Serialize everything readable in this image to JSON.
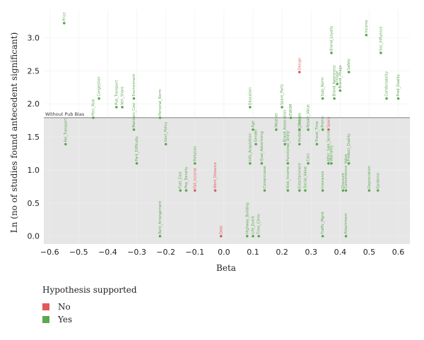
{
  "chart_data": {
    "type": "scatter",
    "xlabel": "Beta",
    "ylabel": "Ln (no of studies found antecedent significant)",
    "xlim": [
      -0.62,
      0.64
    ],
    "ylim": [
      -0.12,
      3.42
    ],
    "x_ticks": [
      "−0.6",
      "−0.5",
      "−0.4",
      "−0.3",
      "−0.2",
      "−0.1",
      "0.0",
      "0.1",
      "0.2",
      "0.3",
      "0.4",
      "0.5",
      "0.6"
    ],
    "x_tick_values": [
      -0.6,
      -0.5,
      -0.4,
      -0.3,
      -0.2,
      -0.1,
      0.0,
      0.1,
      0.2,
      0.3,
      0.4,
      0.5,
      0.6
    ],
    "y_ticks": [
      "0.0",
      "0.5",
      "1.0",
      "1.5",
      "2.0",
      "2.5",
      "3.0"
    ],
    "y_tick_values": [
      0.0,
      0.5,
      1.0,
      1.5,
      2.0,
      2.5,
      3.0
    ],
    "reference_line": {
      "y": 1.79,
      "label": "Without Pub Bias"
    },
    "colors": {
      "No": "#e05a5a",
      "Yes": "#5aa84f",
      "band": "#e6e6e6"
    },
    "legend": {
      "title": "Hypothesis supported",
      "entries": [
        {
          "label": "No",
          "color": "#e05a5a"
        },
        {
          "label": "Yes",
          "color": "#5aa84f"
        }
      ],
      "placement": "bottom-left"
    },
    "points": [
      {
        "label": "Price",
        "x": -0.55,
        "y": 3.22,
        "supported": "Yes"
      },
      {
        "label": "Rel_Transport",
        "x": -0.545,
        "y": 1.39,
        "supported": "Yes"
      },
      {
        "label": "Perc_Risk",
        "x": -0.45,
        "y": 1.79,
        "supported": "Yes"
      },
      {
        "label": "Congestion",
        "x": -0.43,
        "y": 2.08,
        "supported": "Yes"
      },
      {
        "label": "Pub_Transport",
        "x": -0.37,
        "y": 1.95,
        "supported": "Yes"
      },
      {
        "label": "Veh_Share",
        "x": -0.35,
        "y": 1.95,
        "supported": "Yes"
      },
      {
        "label": "Environment",
        "x": -0.31,
        "y": 2.08,
        "supported": "Yes"
      },
      {
        "label": "Maintain_Cost",
        "x": -0.31,
        "y": 1.61,
        "supported": "Yes"
      },
      {
        "label": "Park_Difficulty",
        "x": -0.3,
        "y": 1.1,
        "supported": "Yes"
      },
      {
        "label": "Personal_Norm",
        "x": -0.22,
        "y": 1.79,
        "supported": "Yes"
      },
      {
        "label": "Govt_Policy",
        "x": -0.2,
        "y": 1.39,
        "supported": "Yes"
      },
      {
        "label": "Rent_Arrangement",
        "x": -0.22,
        "y": 0.0,
        "supported": "Yes"
      },
      {
        "label": "Fuel_Cost",
        "x": -0.15,
        "y": 0.69,
        "supported": "Yes"
      },
      {
        "label": "Pop_Density",
        "x": -0.13,
        "y": 0.69,
        "supported": "Yes"
      },
      {
        "label": "Pollution",
        "x": -0.1,
        "y": 1.1,
        "supported": "Yes"
      },
      {
        "label": "Fall_Income",
        "x": -0.1,
        "y": 0.69,
        "supported": "No"
      },
      {
        "label": "Work_Distance",
        "x": -0.03,
        "y": 0.69,
        "supported": "No"
      },
      {
        "label": "Debt",
        "x": -0.01,
        "y": 0.0,
        "supported": "No"
      },
      {
        "label": "Education",
        "x": 0.09,
        "y": 1.95,
        "supported": "Yes"
      },
      {
        "label": "Age",
        "x": 0.1,
        "y": 1.61,
        "supported": "Yes"
      },
      {
        "label": "Gender",
        "x": 0.11,
        "y": 1.39,
        "supported": "Yes"
      },
      {
        "label": "Info_Acquisition",
        "x": 0.09,
        "y": 1.1,
        "supported": "Yes"
      },
      {
        "label": "Qual_Advertising",
        "x": 0.13,
        "y": 1.1,
        "supported": "Yes"
      },
      {
        "label": "Conspicuous",
        "x": 0.14,
        "y": 0.69,
        "supported": "Yes"
      },
      {
        "label": "Highway_Building",
        "x": 0.08,
        "y": 0.0,
        "supported": "Yes"
      },
      {
        "label": "Life_Event",
        "x": 0.1,
        "y": 0.0,
        "supported": "Yes"
      },
      {
        "label": "Time_Clims",
        "x": 0.12,
        "y": 0.0,
        "supported": "Yes"
      },
      {
        "label": "Weather",
        "x": 0.18,
        "y": 1.61,
        "supported": "Yes"
      },
      {
        "label": "Spare_Parts",
        "x": 0.2,
        "y": 1.95,
        "supported": "Yes"
      },
      {
        "label": "Brand_Association",
        "x": 0.21,
        "y": 1.39,
        "supported": "Yes"
      },
      {
        "label": "Functional_Utility",
        "x": 0.22,
        "y": 1.1,
        "supported": "Yes"
      },
      {
        "label": "EWOM",
        "x": 0.23,
        "y": 1.79,
        "supported": "Yes"
      },
      {
        "label": "Risk_Income",
        "x": 0.22,
        "y": 0.69,
        "supported": "Yes"
      },
      {
        "label": "Lifestyle",
        "x": 0.26,
        "y": 1.61,
        "supported": "Yes"
      },
      {
        "label": "Hedonic_Value",
        "x": 0.26,
        "y": 1.39,
        "supported": "Yes"
      },
      {
        "label": "Entertainment",
        "x": 0.26,
        "y": 0.69,
        "supported": "Yes"
      },
      {
        "label": "Social_Value",
        "x": 0.28,
        "y": 0.69,
        "supported": "Yes"
      },
      {
        "label": "Resale_Value",
        "x": 0.29,
        "y": 1.61,
        "supported": "Yes"
      },
      {
        "label": "Cars",
        "x": 0.29,
        "y": 1.1,
        "supported": "Yes"
      },
      {
        "label": "Design",
        "x": 0.26,
        "y": 2.48,
        "supported": "No"
      },
      {
        "label": "Subj_Norm",
        "x": 0.34,
        "y": 2.08,
        "supported": "Yes"
      },
      {
        "label": "Travel_Time",
        "x": 0.32,
        "y": 1.39,
        "supported": "Yes"
      },
      {
        "label": "Promo",
        "x": 0.34,
        "y": 1.61,
        "supported": "Yes"
      },
      {
        "label": "Space",
        "x": 0.36,
        "y": 1.61,
        "supported": "No"
      },
      {
        "label": "After_Sale_Service",
        "x": 0.36,
        "y": 1.1,
        "supported": "Yes"
      },
      {
        "label": "Warranty",
        "x": 0.37,
        "y": 1.1,
        "supported": "Yes"
      },
      {
        "label": "Insurance",
        "x": 0.34,
        "y": 0.69,
        "supported": "Yes"
      },
      {
        "label": "Traffic_Mgmt",
        "x": 0.34,
        "y": 0.0,
        "supported": "Yes"
      },
      {
        "label": "Brand_Loyalty",
        "x": 0.37,
        "y": 2.77,
        "supported": "Yes"
      },
      {
        "label": "Brand_Awareness",
        "x": 0.38,
        "y": 2.08,
        "supported": "Yes"
      },
      {
        "label": "Image",
        "x": 0.39,
        "y": 2.3,
        "supported": "Yes"
      },
      {
        "label": "Brand_Image",
        "x": 0.4,
        "y": 2.2,
        "supported": "Yes"
      },
      {
        "label": "Safety",
        "x": 0.43,
        "y": 2.48,
        "supported": "Yes"
      },
      {
        "label": "Discount",
        "x": 0.41,
        "y": 0.69,
        "supported": "Yes"
      },
      {
        "label": "Convenience_Value",
        "x": 0.42,
        "y": 0.69,
        "supported": "Yes"
      },
      {
        "label": "Product_Quality",
        "x": 0.43,
        "y": 1.1,
        "supported": "Yes"
      },
      {
        "label": "Attachment",
        "x": 0.42,
        "y": 0.0,
        "supported": "Yes"
      },
      {
        "label": "Depreciation",
        "x": 0.5,
        "y": 0.69,
        "supported": "Yes"
      },
      {
        "label": "Epidemic",
        "x": 0.53,
        "y": 0.69,
        "supported": "Yes"
      },
      {
        "label": "Income",
        "x": 0.49,
        "y": 3.04,
        "supported": "Yes"
      },
      {
        "label": "Soc_Influence",
        "x": 0.54,
        "y": 2.77,
        "supported": "Yes"
      },
      {
        "label": "Comfortability",
        "x": 0.56,
        "y": 2.08,
        "supported": "Yes"
      },
      {
        "label": "Prod_Quality",
        "x": 0.6,
        "y": 2.08,
        "supported": "Yes"
      }
    ]
  }
}
